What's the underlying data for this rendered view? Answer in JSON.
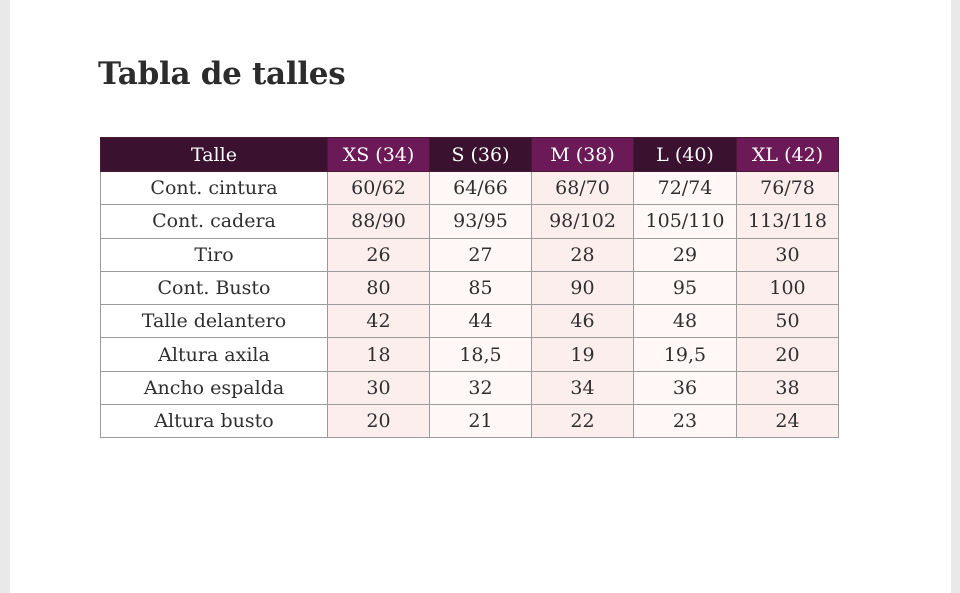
{
  "title": "Tabla de talles",
  "colors": {
    "header_dark": "#3a1230",
    "header_accent": "#6b1a57",
    "cell_shade_a": "#fdeeee",
    "cell_shade_b": "#fff8f6",
    "border": "#9b9b9b"
  },
  "table": {
    "header": [
      "Talle",
      "XS (34)",
      "S (36)",
      "M (38)",
      "L (40)",
      "XL (42)"
    ],
    "rows": [
      {
        "label": "Cont. cintura",
        "values": [
          "60/62",
          "64/66",
          "68/70",
          "72/74",
          "76/78"
        ]
      },
      {
        "label": "Cont. cadera",
        "values": [
          "88/90",
          "93/95",
          "98/102",
          "105/110",
          "113/118"
        ]
      },
      {
        "label": "Tiro",
        "values": [
          "26",
          "27",
          "28",
          "29",
          "30"
        ]
      },
      {
        "label": "Cont. Busto",
        "values": [
          "80",
          "85",
          "90",
          "95",
          "100"
        ]
      },
      {
        "label": "Talle delantero",
        "values": [
          "42",
          "44",
          "46",
          "48",
          "50"
        ]
      },
      {
        "label": "Altura axila",
        "values": [
          "18",
          "18,5",
          "19",
          "19,5",
          "20"
        ]
      },
      {
        "label": "Ancho espalda",
        "values": [
          "30",
          "32",
          "34",
          "36",
          "38"
        ]
      },
      {
        "label": "Altura busto",
        "values": [
          "20",
          "21",
          "22",
          "23",
          "24"
        ]
      }
    ]
  }
}
